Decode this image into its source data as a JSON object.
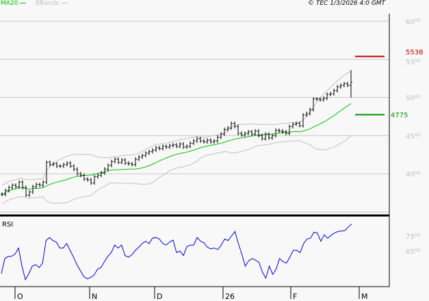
{
  "header": {
    "legend": [
      {
        "label": "MA20",
        "color": "#00c000"
      },
      {
        "label": "BBands",
        "color": "#c0c0c0"
      }
    ],
    "copyright": "© TEC 1/3/2026 4:0 GMT"
  },
  "chart_data": [
    {
      "type": "ohlc",
      "ylim": [
        36,
        61
      ],
      "y_ticks": [
        {
          "main": "60",
          "sub": "00",
          "v": 60
        },
        {
          "main": "55",
          "sub": "00",
          "v": 55
        },
        {
          "main": "50",
          "sub": "00",
          "v": 50
        },
        {
          "main": "45",
          "sub": "00",
          "v": 45
        },
        {
          "main": "40",
          "sub": "00",
          "v": 40
        }
      ],
      "closes": [
        37.3,
        37.8,
        38.2,
        38.5,
        38.3,
        38.9,
        38.2,
        37.2,
        37.6,
        38.3,
        38.6,
        38.5,
        38.9,
        41.5,
        41.2,
        41.3,
        41.0,
        41.0,
        41.2,
        41.4,
        41.0,
        40.6,
        40.0,
        39.8,
        39.3,
        39.2,
        38.8,
        39.6,
        39.8,
        40.1,
        40.6,
        41.1,
        41.6,
        41.9,
        41.5,
        41.8,
        41.4,
        41.3,
        41.2,
        41.9,
        42.2,
        42.4,
        42.7,
        42.9,
        43.1,
        43.4,
        43.3,
        43.6,
        43.5,
        43.7,
        43.8,
        43.6,
        43.9,
        43.5,
        43.6,
        44.0,
        44.3,
        44.6,
        44.3,
        44.2,
        44.4,
        44.2,
        44.3,
        44.8,
        45.2,
        45.8,
        46.0,
        46.6,
        46.2,
        45.3,
        45.1,
        45.3,
        45.5,
        45.2,
        45.6,
        45.0,
        44.6,
        45.2,
        44.7,
        45.0,
        45.7,
        45.6,
        45.5,
        45.3,
        46.2,
        46.5,
        46.6,
        46.3,
        47.7,
        47.9,
        48.4,
        49.8,
        49.8,
        49.7,
        49.9,
        50.4,
        50.5,
        50.9,
        51.4,
        51.6,
        51.8,
        51.6,
        52.0
      ],
      "last_bar": {
        "high": 53.6,
        "low": 50.0,
        "close": 52.0
      },
      "overlays": [
        "MA20",
        "BBands"
      ],
      "levels": [
        {
          "value": "5538",
          "price": 55.38,
          "color": "#c00000"
        },
        {
          "value": "4775",
          "price": 47.75,
          "color": "#009000"
        }
      ],
      "colors": {
        "bars": "#000000",
        "ma": "#00c000",
        "bands": "#c0c0c0",
        "grid": "#c8c8c8"
      }
    },
    {
      "type": "line",
      "title": "RSI",
      "ylim": [
        41,
        87
      ],
      "y_ticks": [
        {
          "main": "75",
          "sub": "00",
          "v": 75
        },
        {
          "main": "65",
          "sub": "00",
          "v": 65
        }
      ],
      "values": [
        50,
        60,
        61.4,
        61.6,
        63,
        67,
        55,
        46,
        50,
        55,
        56,
        54,
        57,
        72,
        74,
        72,
        71,
        67,
        67,
        70,
        65.5,
        61,
        56,
        52,
        48,
        46.5,
        47.5,
        49,
        53,
        54,
        58,
        61.5,
        64,
        69,
        67,
        69,
        62,
        61,
        62.5,
        65.5,
        67.5,
        70,
        71.5,
        70,
        73.6,
        74,
        73,
        70,
        69,
        71,
        72.3,
        64,
        65,
        62,
        68,
        69,
        69,
        74,
        71.5,
        70.5,
        67.5,
        66.5,
        67,
        66,
        69,
        73,
        72,
        75,
        78,
        70,
        63,
        55,
        58.5,
        60,
        59,
        57.5,
        51,
        47,
        55,
        49.5,
        53,
        60,
        58,
        57,
        61,
        65.5,
        65.5,
        64,
        70,
        73,
        73.6,
        77.5,
        77,
        71.5,
        75.8,
        73.5,
        75.5,
        77,
        78,
        78.3,
        78.6,
        81,
        83
      ],
      "color": "#0000e0"
    }
  ],
  "x_axis": {
    "months": [
      "O",
      "N",
      "D",
      "26",
      "F",
      "M"
    ]
  }
}
